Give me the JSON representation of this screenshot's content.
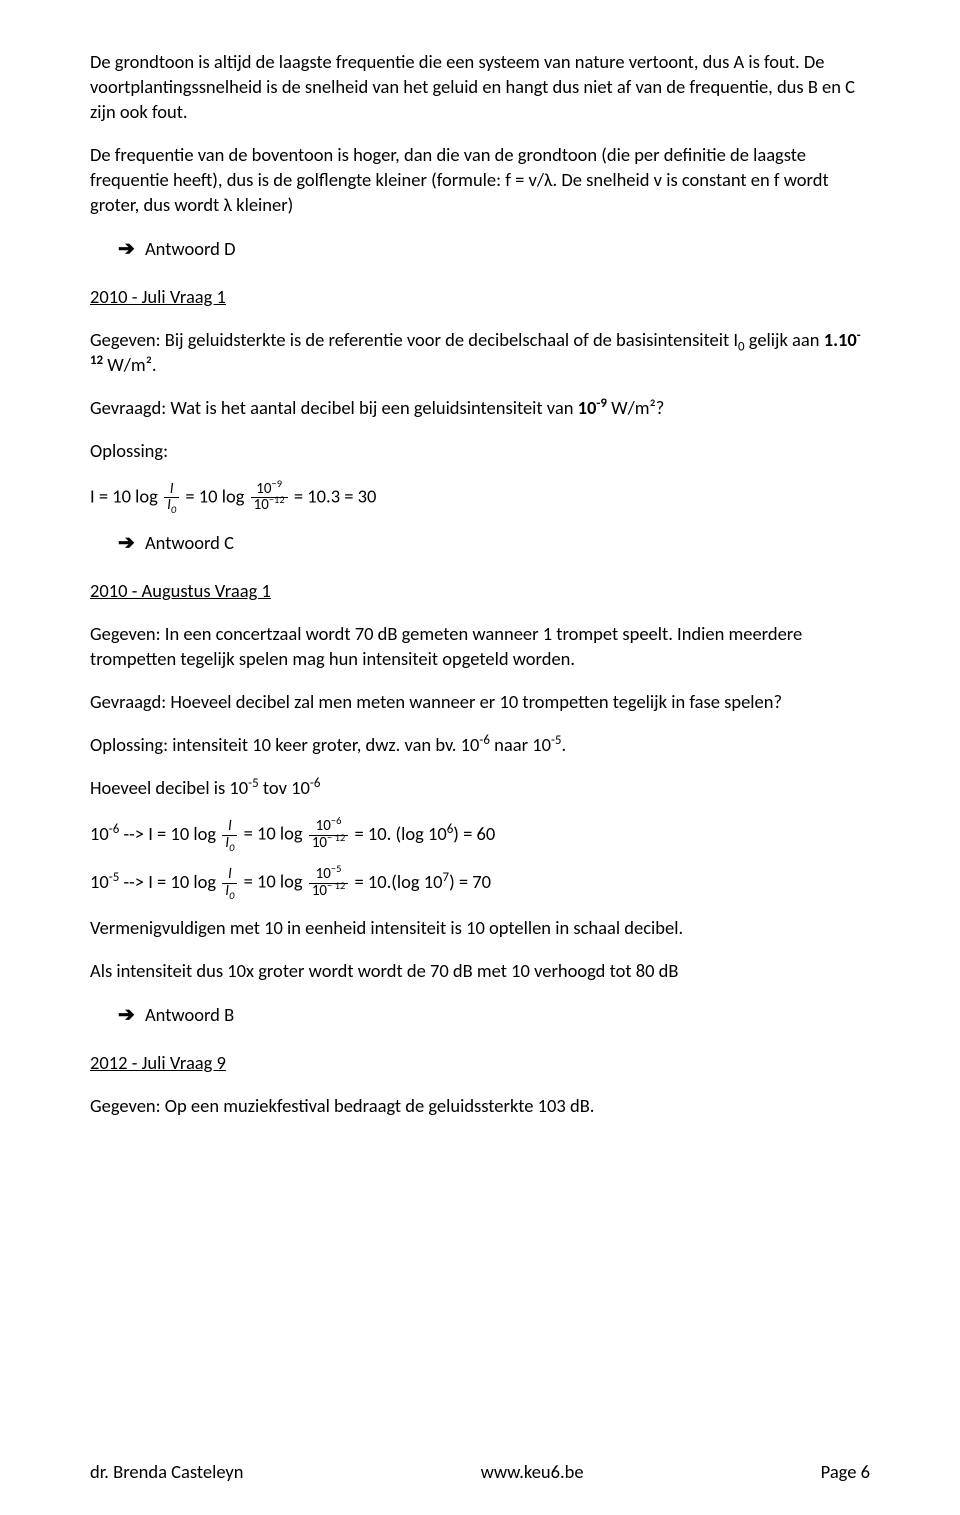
{
  "p1": "De grondtoon is altijd de laagste frequentie die een systeem van nature vertoont, dus A is fout.  De voortplantingssnelheid is de snelheid van het geluid en hangt dus niet af van de frequentie, dus B en C zijn ook fout.",
  "p2": "De frequentie van de boventoon is hoger, dan die van de grondtoon (die per definitie de laagste frequentie heeft), dus is de golflengte kleiner (formule: f = v/λ.  De snelheid v is constant en f wordt groter, dus wordt λ kleiner)",
  "ans1": "Antwoord D",
  "h1": "2010 - Juli Vraag 1",
  "p3_a": "Gegeven: Bij geluidsterkte is de referentie voor de decibelschaal of de basisintensiteit I",
  "p3_b": " gelijk aan ",
  "p3_bold": "1.10",
  "p3_sup": "-12",
  "p3_unit": " W/m².",
  "p4_a": "Gevraagd: Wat is het aantal decibel bij een geluidsintensiteit van ",
  "p4_bold": "10",
  "p4_sup": "-9",
  "p4_unit": " W/m²?",
  "p5": "Oplossing:",
  "f1_a": "I = 10 log ",
  "f1_num1": "I",
  "f1_den1_a": "I",
  "f1_den1_sub": "0",
  "f1_b": "  = 10 log ",
  "f1_num2_a": "10",
  "f1_num2_sup": "−9",
  "f1_den2_a": "10",
  "f1_den2_sup": "−12",
  "f1_c": " = 10.3 = 30",
  "ans2": "Antwoord C",
  "h2": "2010 - Augustus Vraag 1",
  "p6": "Gegeven: In een concertzaal wordt 70 dB gemeten wanneer 1 trompet speelt. Indien meerdere trompetten tegelijk spelen mag hun intensiteit opgeteld worden.",
  "p7": "Gevraagd: Hoeveel decibel zal men meten wanneer er 10 trompetten tegelijk in fase spelen?",
  "p8_a": "Oplossing: intensiteit 10 keer groter, dwz.  van bv. 10",
  "p8_sup1": "-6",
  "p8_b": " naar 10",
  "p8_sup2": "-5",
  "p8_c": ".",
  "p9_a": "Hoeveel decibel is 10",
  "p9_sup1": "-5",
  "p9_b": " tov 10",
  "p9_sup2": "-6",
  "f2_pre_a": "10",
  "f2_pre_sup": "-6",
  "f2_pre_b": "  -->  I = 10 log ",
  "f2_num1": "I",
  "f2_den1_a": "I",
  "f2_den1_sub": "0",
  "f2_mid": "  = 10 log ",
  "f2_num2_a": "10",
  "f2_num2_sup": "−6",
  "f2_den2_a": "10",
  "f2_den2_sup": "− 12",
  "f2_end_a": " = 10. (log 10",
  "f2_end_sup": "6",
  "f2_end_b": ") = 60",
  "f3_pre_a": "10",
  "f3_pre_sup": "-5",
  "f3_pre_b": "   --> I = 10 log ",
  "f3_num1": "I",
  "f3_den1_a": "I",
  "f3_den1_sub": "0",
  "f3_mid": "  = 10 log ",
  "f3_num2_a": "10",
  "f3_num2_sup": "−5",
  "f3_den2_a": "10",
  "f3_den2_sup": "− 12",
  "f3_end_a": " = 10.(log 10",
  "f3_end_sup": "7",
  "f3_end_b": ") = 70",
  "p10": "Vermenigvuldigen met 10 in eenheid intensiteit is 10 optellen in schaal decibel.",
  "p11": "Als intensiteit dus 10x  groter wordt wordt de 70 dB met 10 verhoogd tot 80 dB",
  "ans3": "Antwoord B",
  "h3": "2012 - Juli Vraag 9",
  "p12": "Gegeven: Op een muziekfestival bedraagt de geluidssterkte 103 dB.",
  "footer_left": "dr. Brenda Casteleyn",
  "footer_center": "www.keu6.be",
  "footer_right": "Page 6"
}
